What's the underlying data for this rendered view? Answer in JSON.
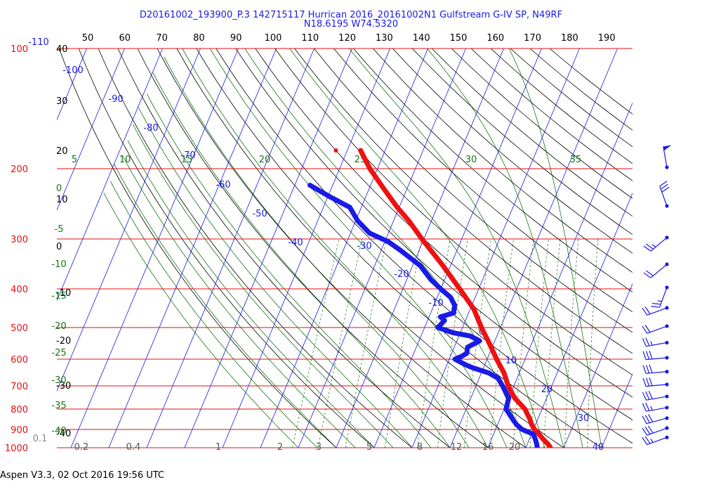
{
  "header": {
    "title_line1": "D20161002_193900_P.3 142715117 Hurrican 2016_20161002N1 Gulfstream G-IV SP, N49RF",
    "title_line2": "N18.6195 W74.5320"
  },
  "footer": {
    "text": "Aspen V3.3, 02 Oct 2016  19:56 UTC"
  },
  "colors": {
    "pressure_lines": "#e01010",
    "pressure_labels": "#e01010",
    "isotherms": "#1a1ae6",
    "dry_adiabats": "#000000",
    "moist_adiabats": "#117711",
    "mixing_ratio": "#117711",
    "temperature_trace": "#ee1111",
    "dewpoint_trace": "#1a1ae6",
    "wind_barbs": "#1a1ae6"
  },
  "chart_data": {
    "type": "skew-t log-p",
    "title": "D20161002_193900_P.3 142715117 Hurrican 2016_20161002N1 Gulfstream G-IV SP, N49RF",
    "subtitle": "N18.6195 W74.5320",
    "pressure_axis": {
      "scale": "log",
      "ylim": [
        1000,
        100
      ],
      "labels": [
        "100",
        "200",
        "300",
        "400",
        "500",
        "600",
        "700",
        "800",
        "900",
        "1000"
      ]
    },
    "top_scale_labels": [
      "50",
      "60",
      "70",
      "80",
      "90",
      "100",
      "110",
      "120",
      "130",
      "140",
      "150",
      "160",
      "170",
      "180",
      "190"
    ],
    "left_column_labels": [
      "40",
      "30",
      "20",
      "10",
      "0",
      "-10",
      "-20",
      "-30",
      "-40"
    ],
    "isotherm_labels": [
      "-110",
      "-100",
      "-90",
      "-80",
      "-70",
      "-60",
      "-50",
      "-40",
      "-30",
      "-20",
      "-10",
      "0",
      "10",
      "20",
      "30",
      "40"
    ],
    "moist_adiabat_top_labels": [
      "5",
      "10",
      "15",
      "20",
      "25",
      "30",
      "35"
    ],
    "moist_adiabat_left_labels": [
      "0",
      "-5",
      "-10",
      "-15",
      "-20",
      "-25",
      "-30",
      "-35",
      "-40"
    ],
    "mixing_ratio_labels": [
      "0.1",
      "0.2",
      "0.4",
      "1",
      "2",
      "3",
      "5",
      "8",
      "12",
      "16",
      "20"
    ],
    "temperature": [
      {
        "p": 1000,
        "t": 26.5
      },
      {
        "p": 980,
        "t": 25.5
      },
      {
        "p": 950,
        "t": 23.5
      },
      {
        "p": 925,
        "t": 22.0
      },
      {
        "p": 900,
        "t": 20.3
      },
      {
        "p": 875,
        "t": 19.0
      },
      {
        "p": 850,
        "t": 18.0
      },
      {
        "p": 800,
        "t": 15.5
      },
      {
        "p": 750,
        "t": 11.5
      },
      {
        "p": 700,
        "t": 8.5
      },
      {
        "p": 650,
        "t": 6.0
      },
      {
        "p": 600,
        "t": 2.5
      },
      {
        "p": 550,
        "t": -1.0
      },
      {
        "p": 500,
        "t": -5.0
      },
      {
        "p": 450,
        "t": -9.0
      },
      {
        "p": 400,
        "t": -15.0
      },
      {
        "p": 350,
        "t": -22.0
      },
      {
        "p": 300,
        "t": -30.5
      },
      {
        "p": 270,
        "t": -36.0
      },
      {
        "p": 250,
        "t": -40.5
      },
      {
        "p": 225,
        "t": -46.0
      },
      {
        "p": 200,
        "t": -52.0
      },
      {
        "p": 180,
        "t": -56.5
      }
    ],
    "dewpoint": [
      {
        "p": 1000,
        "td": 23.0
      },
      {
        "p": 980,
        "td": 22.5
      },
      {
        "p": 950,
        "td": 21.5
      },
      {
        "p": 925,
        "td": 20.5
      },
      {
        "p": 900,
        "td": 17.0
      },
      {
        "p": 875,
        "td": 15.0
      },
      {
        "p": 850,
        "td": 13.5
      },
      {
        "p": 800,
        "td": 10.5
      },
      {
        "p": 750,
        "td": 10.0
      },
      {
        "p": 700,
        "td": 7.0
      },
      {
        "p": 670,
        "td": 5.0
      },
      {
        "p": 650,
        "td": 2.0
      },
      {
        "p": 630,
        "td": -3.0
      },
      {
        "p": 620,
        "td": -5.0
      },
      {
        "p": 600,
        "td": -8.5
      },
      {
        "p": 590,
        "td": -7.0
      },
      {
        "p": 580,
        "td": -6.0
      },
      {
        "p": 560,
        "td": -6.5
      },
      {
        "p": 540,
        "td": -4.0
      },
      {
        "p": 525,
        "td": -7.0
      },
      {
        "p": 515,
        "td": -12.0
      },
      {
        "p": 500,
        "td": -16.5
      },
      {
        "p": 480,
        "td": -15.5
      },
      {
        "p": 470,
        "td": -17.0
      },
      {
        "p": 460,
        "td": -14.0
      },
      {
        "p": 440,
        "td": -14.5
      },
      {
        "p": 420,
        "td": -16.5
      },
      {
        "p": 400,
        "td": -20.0
      },
      {
        "p": 380,
        "td": -23.5
      },
      {
        "p": 350,
        "td": -28.0
      },
      {
        "p": 320,
        "td": -35.0
      },
      {
        "p": 305,
        "td": -39.0
      },
      {
        "p": 290,
        "td": -45.0
      },
      {
        "p": 270,
        "td": -49.5
      },
      {
        "p": 250,
        "td": -53.0
      },
      {
        "p": 235,
        "td": -59.5
      },
      {
        "p": 220,
        "td": -66.0
      }
    ],
    "isolated_points": [
      {
        "series": "temperature",
        "p": 180,
        "t": -63.0
      }
    ],
    "wind_barbs": [
      {
        "p": 200,
        "speed": 50,
        "dir": 350
      },
      {
        "p": 250,
        "speed": 30,
        "dir": 340
      },
      {
        "p": 300,
        "speed": 25,
        "dir": 230
      },
      {
        "p": 350,
        "speed": 20,
        "dir": 230
      },
      {
        "p": 400,
        "speed": 25,
        "dir": 200
      },
      {
        "p": 450,
        "speed": 20,
        "dir": 250
      },
      {
        "p": 500,
        "speed": 20,
        "dir": 250
      },
      {
        "p": 550,
        "speed": 25,
        "dir": 260
      },
      {
        "p": 600,
        "speed": 30,
        "dir": 265
      },
      {
        "p": 650,
        "speed": 30,
        "dir": 265
      },
      {
        "p": 700,
        "speed": 30,
        "dir": 265
      },
      {
        "p": 750,
        "speed": 30,
        "dir": 260
      },
      {
        "p": 800,
        "speed": 25,
        "dir": 260
      },
      {
        "p": 850,
        "speed": 30,
        "dir": 255
      },
      {
        "p": 900,
        "speed": 30,
        "dir": 250
      },
      {
        "p": 950,
        "speed": 25,
        "dir": 250
      }
    ]
  }
}
